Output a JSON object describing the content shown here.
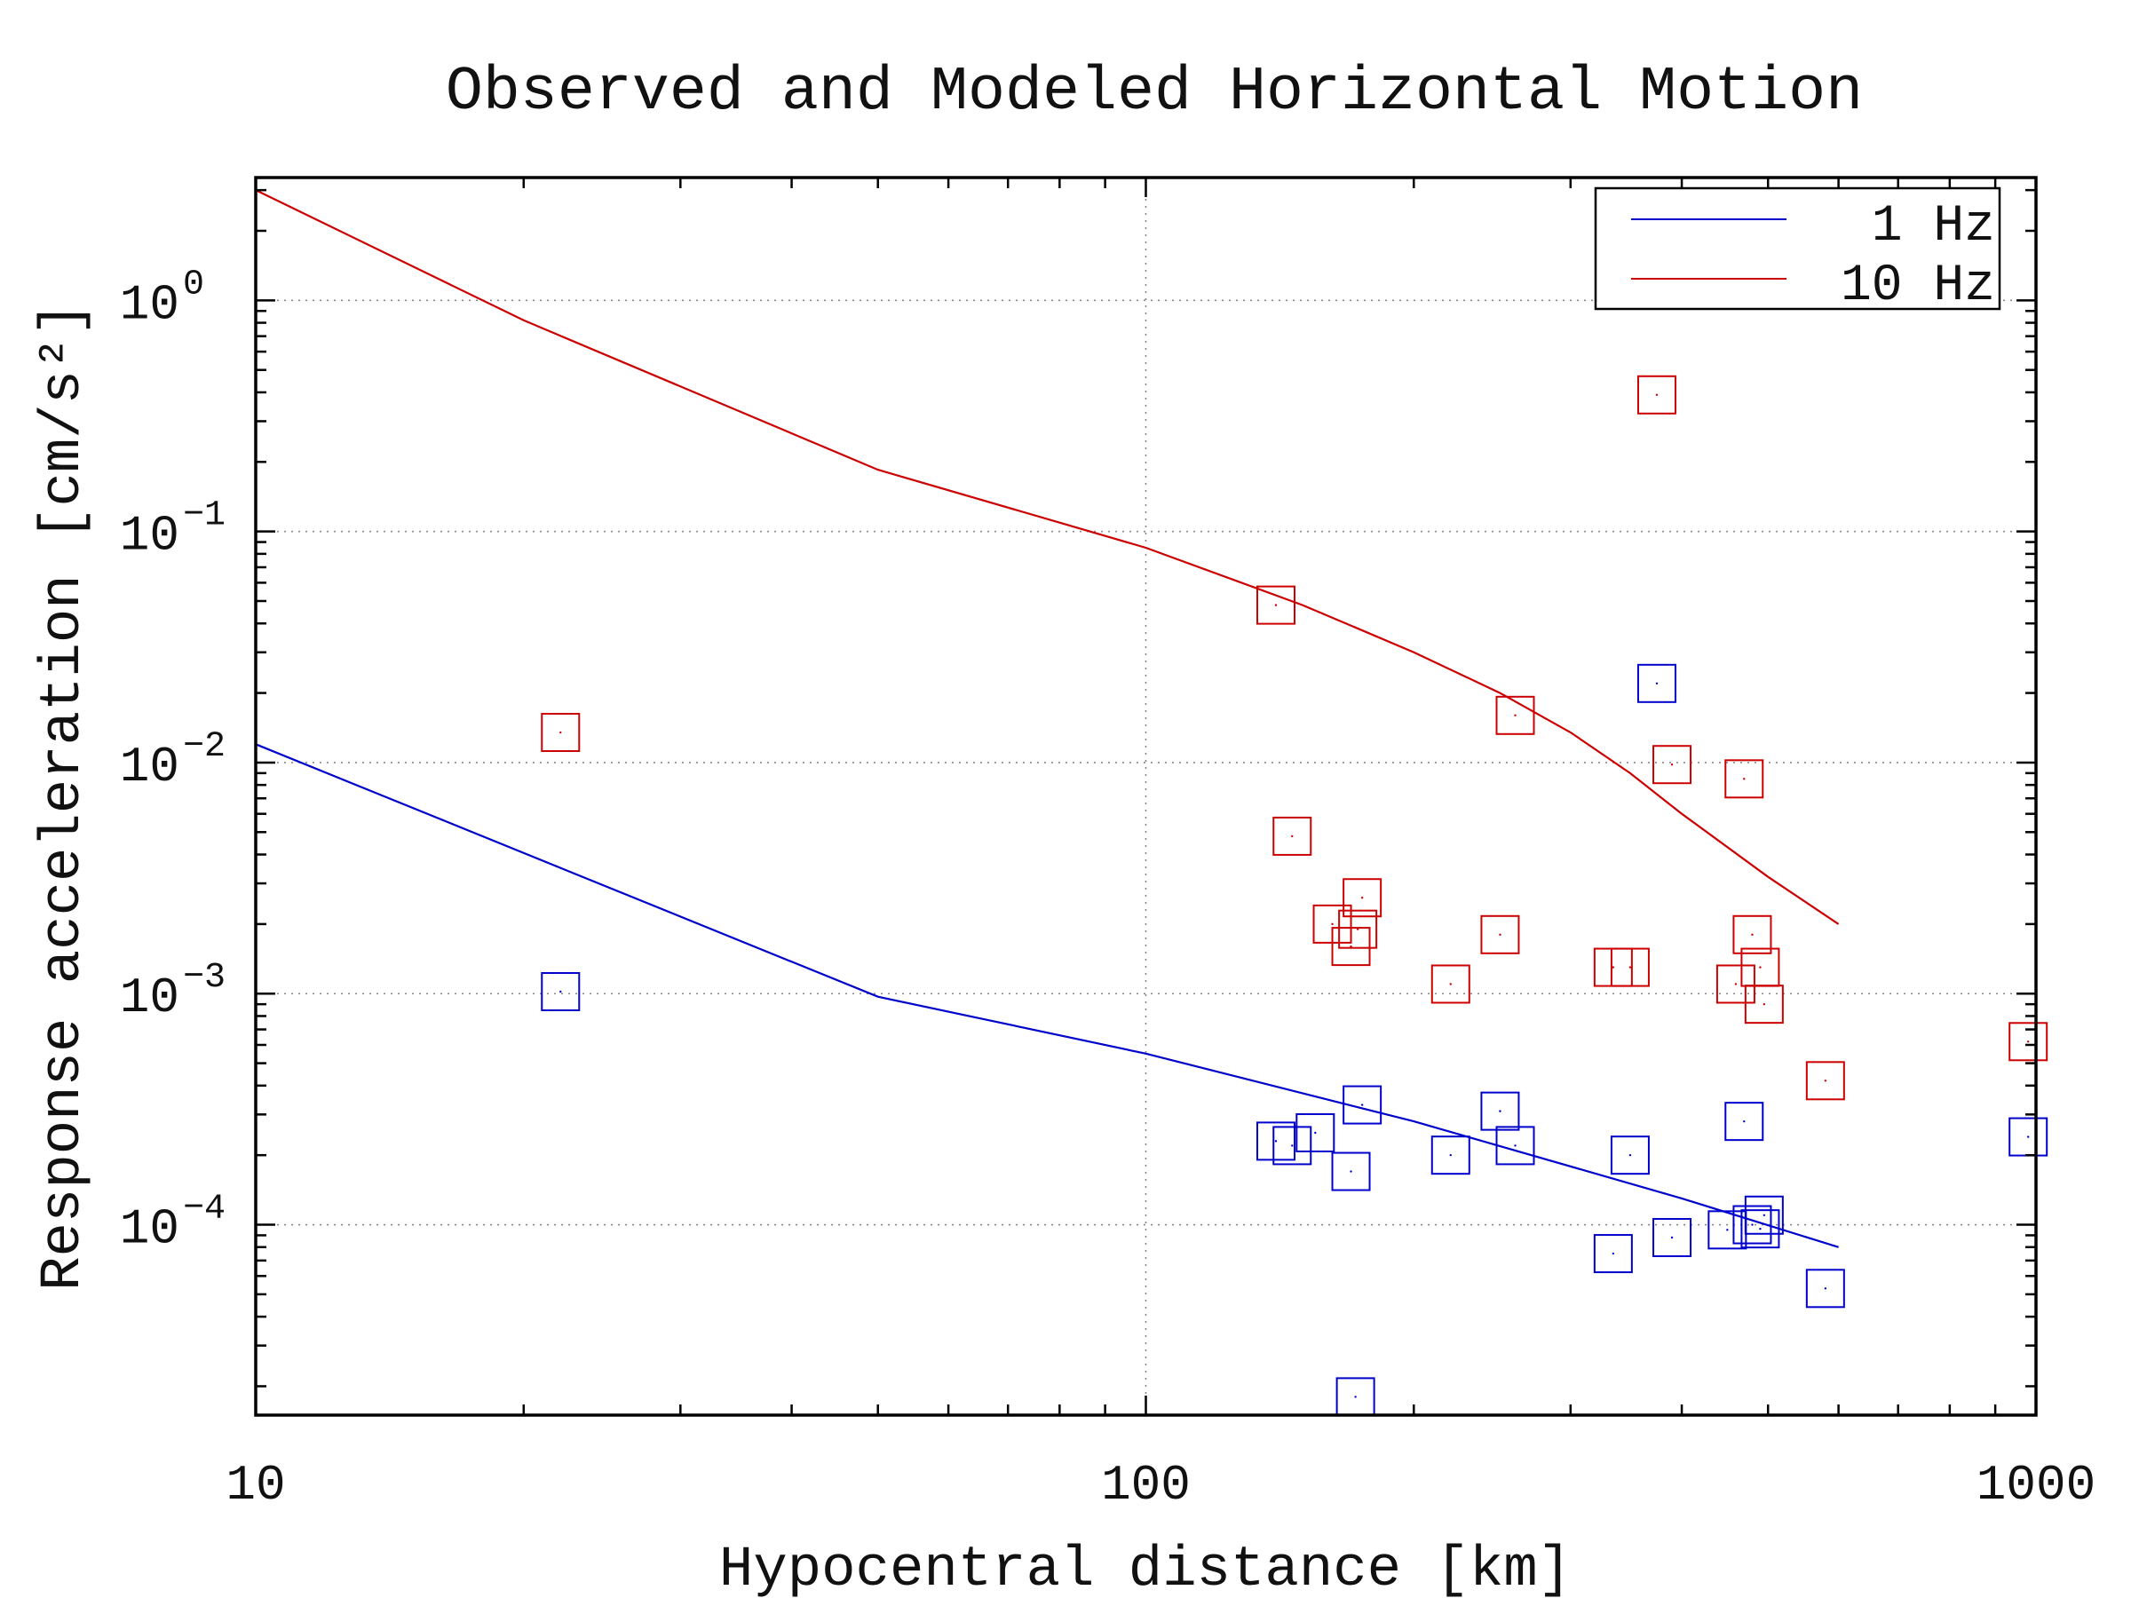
{
  "chart_data": {
    "type": "scatter",
    "title": "Observed and Modeled Horizontal Motion",
    "xlabel": "Hypocentral distance [km]",
    "ylabel": "Response acceleration [cm/s²]",
    "xscale": "log",
    "yscale": "log",
    "xlim": [
      10,
      1000
    ],
    "ylim": [
      1.5e-05,
      3.4
    ],
    "grid": true,
    "legend_position": "top-right",
    "x_ticks": [
      {
        "value": 10,
        "label": "10"
      },
      {
        "value": 100,
        "label": "100"
      },
      {
        "value": 1000,
        "label": "1000"
      }
    ],
    "y_ticks": [
      {
        "value": 1,
        "mantissa": "10",
        "exponent": "0"
      },
      {
        "value": 0.1,
        "mantissa": "10",
        "exponent": "−1"
      },
      {
        "value": 0.01,
        "mantissa": "10",
        "exponent": "−2"
      },
      {
        "value": 0.001,
        "mantissa": "10",
        "exponent": "−3"
      },
      {
        "value": 0.0001,
        "mantissa": "10",
        "exponent": "−4"
      }
    ],
    "series": [
      {
        "name": "1 Hz",
        "color": "#0000cc",
        "model_line": [
          {
            "x": 10,
            "y": 0.012
          },
          {
            "x": 50,
            "y": 0.00097
          },
          {
            "x": 100,
            "y": 0.00055
          },
          {
            "x": 200,
            "y": 0.00028
          },
          {
            "x": 400,
            "y": 0.00013
          },
          {
            "x": 600,
            "y": 8e-05
          }
        ],
        "observed": [
          {
            "x": 22,
            "y": 0.00102
          },
          {
            "x": 140,
            "y": 0.00023
          },
          {
            "x": 146,
            "y": 0.00022
          },
          {
            "x": 155,
            "y": 0.00025
          },
          {
            "x": 170,
            "y": 0.00017
          },
          {
            "x": 175,
            "y": 0.00033
          },
          {
            "x": 172,
            "y": 1.8e-05
          },
          {
            "x": 220,
            "y": 0.0002
          },
          {
            "x": 250,
            "y": 0.00031
          },
          {
            "x": 260,
            "y": 0.00022
          },
          {
            "x": 335,
            "y": 7.5e-05
          },
          {
            "x": 350,
            "y": 0.0002
          },
          {
            "x": 375,
            "y": 0.022
          },
          {
            "x": 390,
            "y": 8.8e-05
          },
          {
            "x": 450,
            "y": 9.5e-05
          },
          {
            "x": 470,
            "y": 0.00028
          },
          {
            "x": 480,
            "y": 0.0001
          },
          {
            "x": 490,
            "y": 9.6e-05
          },
          {
            "x": 495,
            "y": 0.00011
          },
          {
            "x": 580,
            "y": 5.3e-05
          },
          {
            "x": 980,
            "y": 0.00024
          }
        ]
      },
      {
        "name": "10 Hz",
        "color": "#cc0000",
        "model_line": [
          {
            "x": 10,
            "y": 3.0
          },
          {
            "x": 20,
            "y": 0.82
          },
          {
            "x": 50,
            "y": 0.185
          },
          {
            "x": 100,
            "y": 0.085
          },
          {
            "x": 150,
            "y": 0.048
          },
          {
            "x": 200,
            "y": 0.03
          },
          {
            "x": 250,
            "y": 0.02
          },
          {
            "x": 300,
            "y": 0.0135
          },
          {
            "x": 350,
            "y": 0.009
          },
          {
            "x": 400,
            "y": 0.006
          },
          {
            "x": 500,
            "y": 0.0032
          },
          {
            "x": 600,
            "y": 0.002
          }
        ],
        "observed": [
          {
            "x": 22,
            "y": 0.0135
          },
          {
            "x": 140,
            "y": 0.048
          },
          {
            "x": 146,
            "y": 0.0048
          },
          {
            "x": 162,
            "y": 0.002
          },
          {
            "x": 170,
            "y": 0.0016
          },
          {
            "x": 173,
            "y": 0.0019
          },
          {
            "x": 175,
            "y": 0.0026
          },
          {
            "x": 220,
            "y": 0.0011
          },
          {
            "x": 250,
            "y": 0.0018
          },
          {
            "x": 260,
            "y": 0.016
          },
          {
            "x": 335,
            "y": 0.0013
          },
          {
            "x": 350,
            "y": 0.0013
          },
          {
            "x": 375,
            "y": 0.39
          },
          {
            "x": 390,
            "y": 0.0098
          },
          {
            "x": 460,
            "y": 0.0011
          },
          {
            "x": 470,
            "y": 0.0085
          },
          {
            "x": 480,
            "y": 0.0018
          },
          {
            "x": 490,
            "y": 0.0013
          },
          {
            "x": 495,
            "y": 0.0009
          },
          {
            "x": 580,
            "y": 0.00042
          },
          {
            "x": 980,
            "y": 0.00062
          }
        ]
      }
    ]
  }
}
